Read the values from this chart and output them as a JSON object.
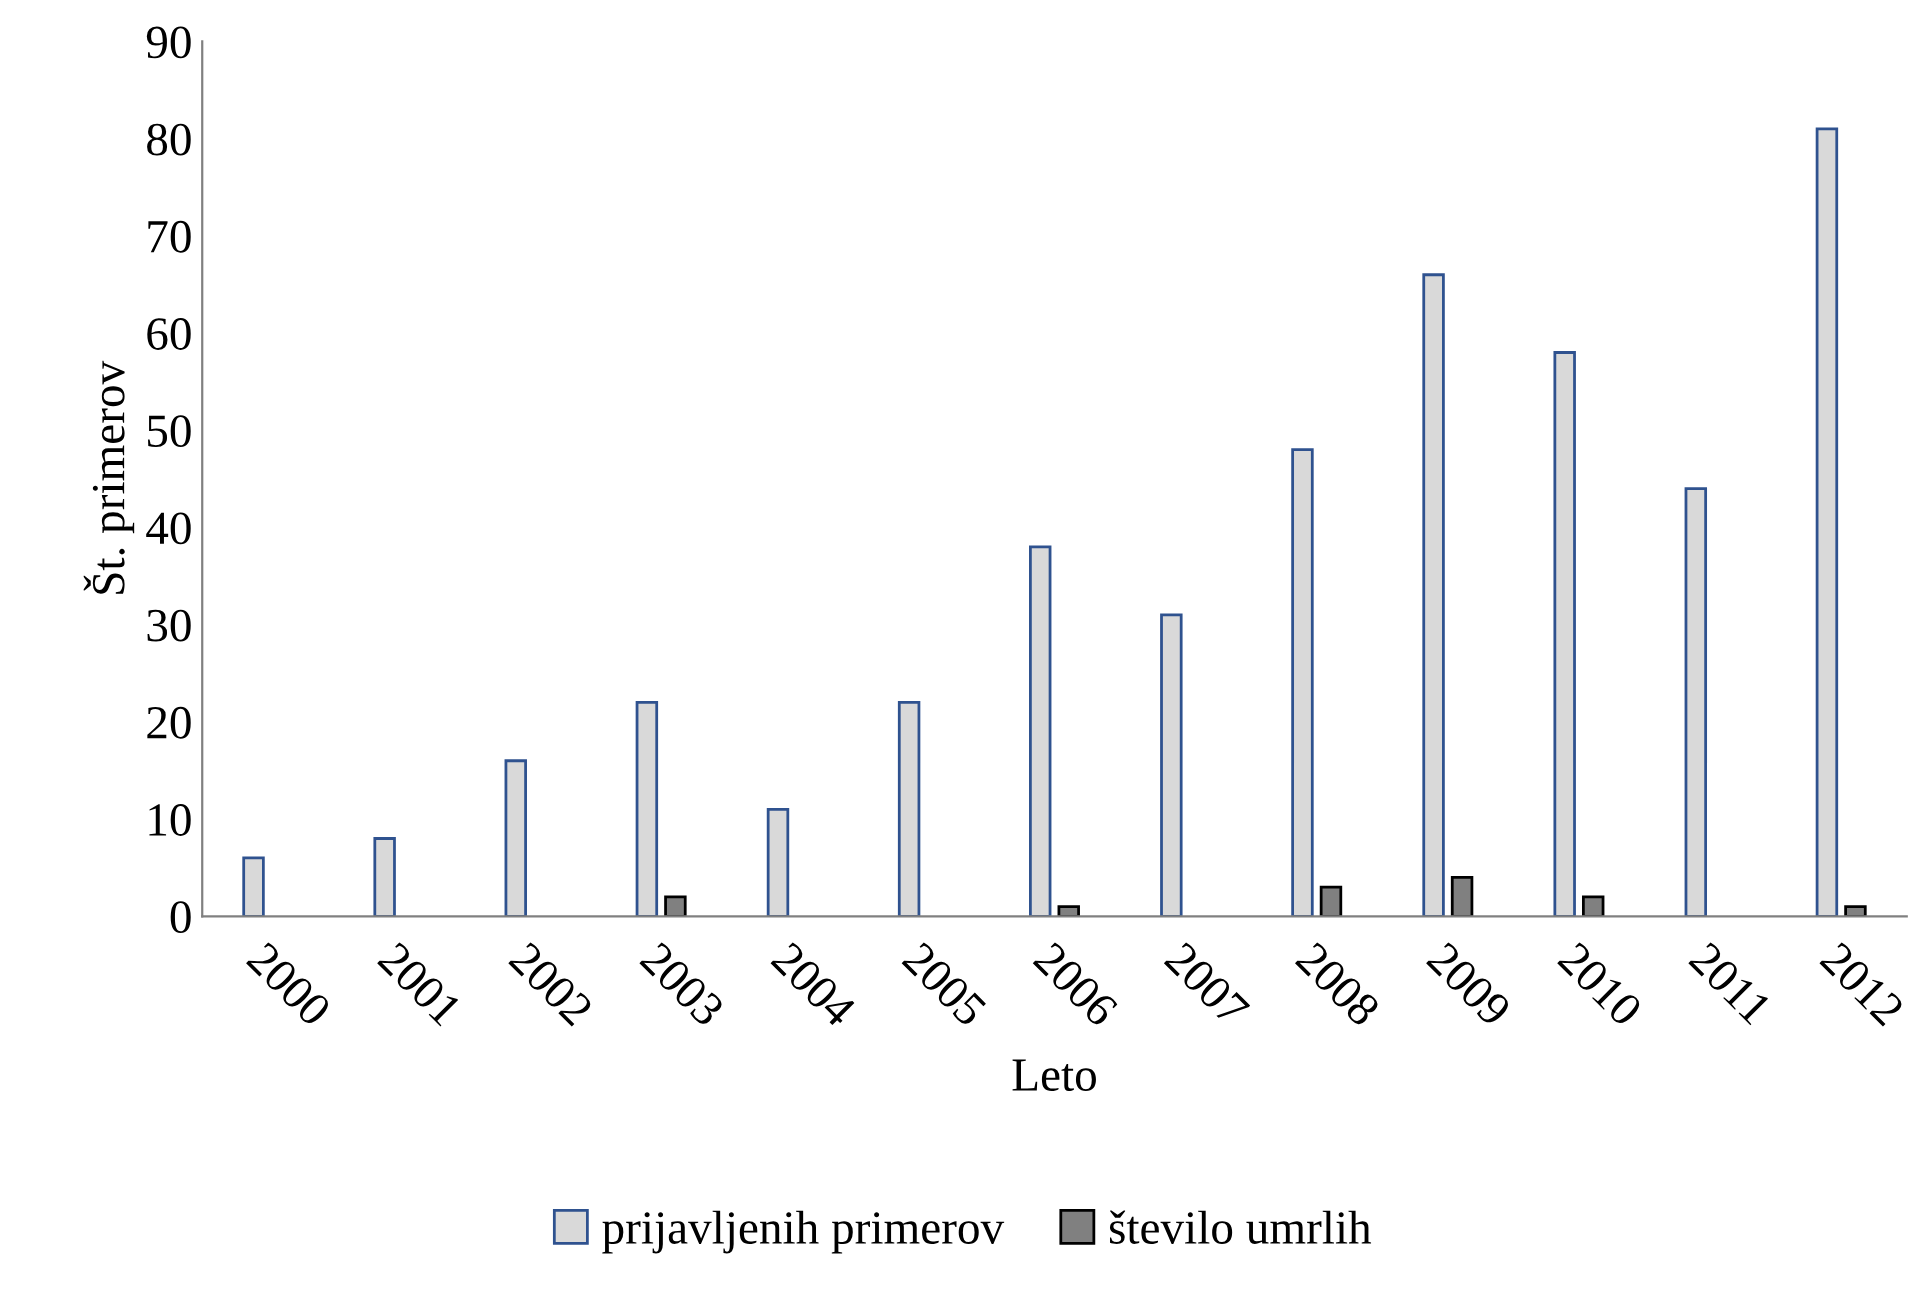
{
  "chart_data": {
    "type": "bar",
    "xlabel": "Leto",
    "ylabel": "Št. primerov",
    "categories": [
      "2000",
      "2001",
      "2002",
      "2003",
      "2004",
      "2005",
      "2006",
      "2007",
      "2008",
      "2009",
      "2010",
      "2011",
      "2012"
    ],
    "series": [
      {
        "name": "prijavljenih primerov",
        "color": "#d9d9d9",
        "values": [
          6,
          8,
          16,
          22,
          11,
          22,
          38,
          31,
          48,
          66,
          58,
          44,
          81
        ]
      },
      {
        "name": "število umrlih",
        "color": "#808080",
        "values": [
          null,
          null,
          null,
          2,
          null,
          null,
          1,
          null,
          3,
          4,
          2,
          null,
          1
        ]
      }
    ],
    "ylim": [
      0,
      90
    ],
    "yticks": [
      0,
      10,
      20,
      30,
      40,
      50,
      60,
      70,
      80,
      90
    ],
    "grid": false,
    "legend": "bottom"
  }
}
